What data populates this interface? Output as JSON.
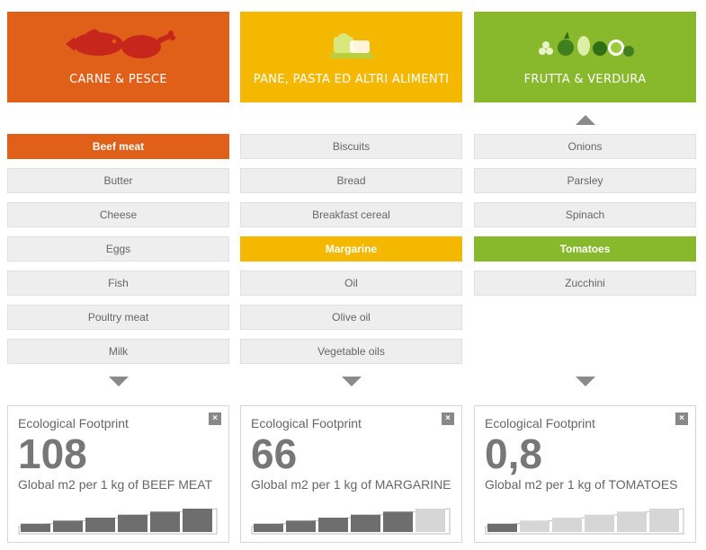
{
  "colors": {
    "meat": "#e0601a",
    "bread": "#f5b800",
    "fruit": "#88b82c",
    "meter_on": "#6e6e6e",
    "meter_off": "#d6d6d6"
  },
  "columns": [
    {
      "title": "CARNE & PESCE",
      "icon": "fish-and-chicken-icon",
      "items": [
        "Beef meat",
        "Butter",
        "Cheese",
        "Eggs",
        "Fish",
        "Poultry meat",
        "Milk"
      ],
      "selected": "Beef meat",
      "has_up_arrow": false,
      "card": {
        "label": "Ecological Footprint",
        "value": "108",
        "unit": "Global m2 per 1 kg of BEEF MEAT",
        "close": "×",
        "meter_level": 6,
        "meter_max": 6
      }
    },
    {
      "title": "PANE, PASTA ED ALTRI ALIMENTI",
      "icon": "bread-icon",
      "items": [
        "Biscuits",
        "Bread",
        "Breakfast cereal",
        "Margarine",
        "Oil",
        "Olive oil",
        "Vegetable oils"
      ],
      "selected": "Margarine",
      "has_up_arrow": false,
      "card": {
        "label": "Ecological Footprint",
        "value": "66",
        "unit": "Global m2 per 1 kg of MARGARINE",
        "close": "×",
        "meter_level": 5,
        "meter_max": 6
      }
    },
    {
      "title": "FRUTTA & VERDURA",
      "icon": "fruit-and-vegetables-icon",
      "items": [
        "Onions",
        "Parsley",
        "Spinach",
        "Tomatoes",
        "Zucchini"
      ],
      "selected": "Tomatoes",
      "has_up_arrow": true,
      "card": {
        "label": "Ecological Footprint",
        "value": "0,8",
        "unit": "Global m2 per 1 kg of TOMATOES",
        "close": "×",
        "meter_level": 1,
        "meter_max": 6
      }
    }
  ]
}
